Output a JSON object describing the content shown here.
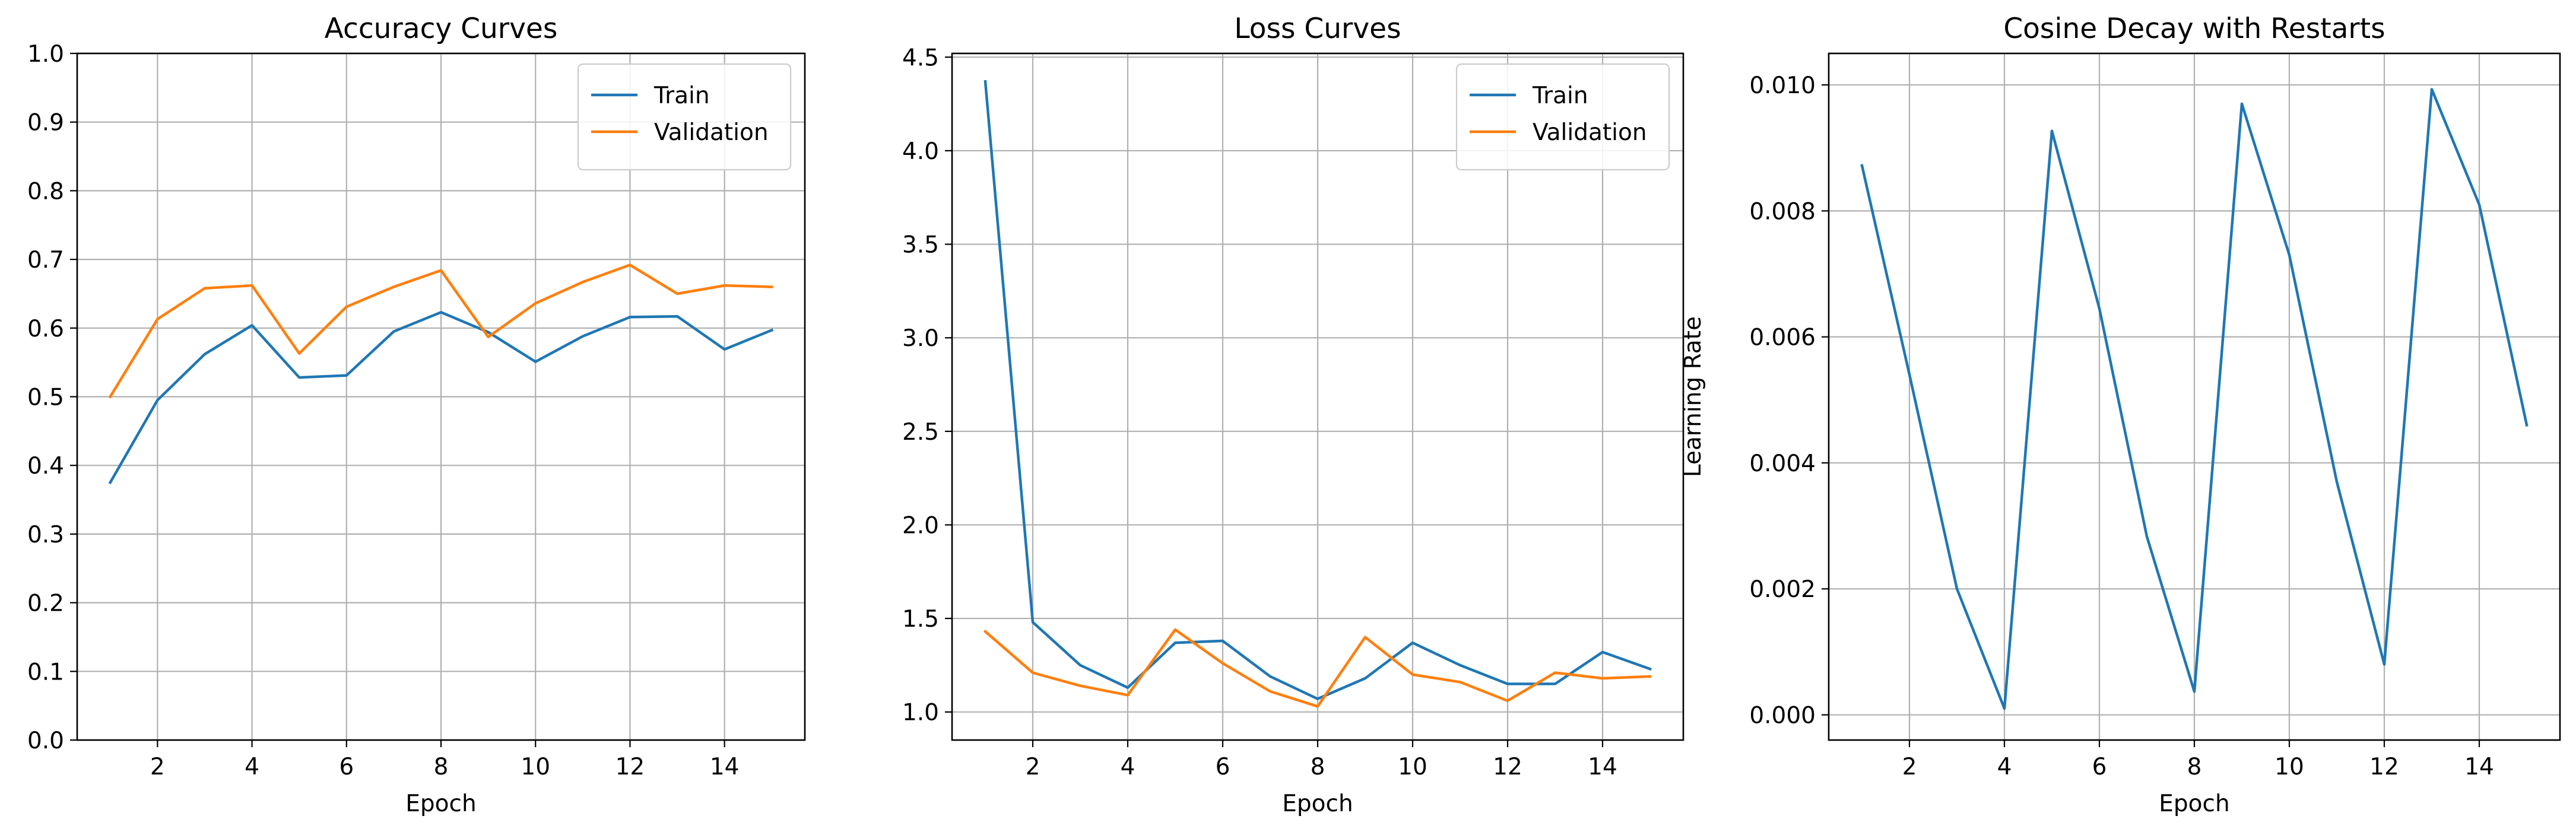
{
  "colors": {
    "train": "#1f77b4",
    "validation": "#ff7f0e",
    "grid": "#b0b0b0"
  },
  "chart_data": [
    {
      "type": "line",
      "title": "Accuracy Curves",
      "xlabel": "Epoch",
      "ylabel": "",
      "xlim": [
        0.3,
        15.7
      ],
      "ylim": [
        0.0,
        1.0
      ],
      "xticks": [
        2,
        4,
        6,
        8,
        10,
        12,
        14
      ],
      "yticks": [
        0.0,
        0.1,
        0.2,
        0.3,
        0.4,
        0.5,
        0.6,
        0.7,
        0.8,
        0.9,
        1.0
      ],
      "ytick_labels": [
        "0.0",
        "0.1",
        "0.2",
        "0.3",
        "0.4",
        "0.5",
        "0.6",
        "0.7",
        "0.8",
        "0.9",
        "1.0"
      ],
      "grid": true,
      "legend": "top-right",
      "x": [
        1,
        2,
        3,
        4,
        5,
        6,
        7,
        8,
        9,
        10,
        11,
        12,
        13,
        14,
        15
      ],
      "series": [
        {
          "name": "Train",
          "color": "#1f77b4",
          "values": [
            0.375,
            0.495,
            0.562,
            0.604,
            0.528,
            0.531,
            0.595,
            0.623,
            0.594,
            0.551,
            0.588,
            0.616,
            0.617,
            0.569,
            0.597
          ]
        },
        {
          "name": "Validation",
          "color": "#ff7f0e",
          "values": [
            0.5,
            0.613,
            0.658,
            0.662,
            0.563,
            0.631,
            0.66,
            0.684,
            0.587,
            0.636,
            0.667,
            0.692,
            0.65,
            0.662,
            0.66
          ]
        }
      ]
    },
    {
      "type": "line",
      "title": "Loss Curves",
      "xlabel": "Epoch",
      "ylabel": "",
      "xlim": [
        0.3,
        15.7
      ],
      "ylim": [
        0.85,
        4.52
      ],
      "xticks": [
        2,
        4,
        6,
        8,
        10,
        12,
        14
      ],
      "yticks": [
        1.0,
        1.5,
        2.0,
        2.5,
        3.0,
        3.5,
        4.0,
        4.5
      ],
      "ytick_labels": [
        "1.0",
        "1.5",
        "2.0",
        "2.5",
        "3.0",
        "3.5",
        "4.0",
        "4.5"
      ],
      "grid": true,
      "legend": "top-right",
      "x": [
        1,
        2,
        3,
        4,
        5,
        6,
        7,
        8,
        9,
        10,
        11,
        12,
        13,
        14,
        15
      ],
      "series": [
        {
          "name": "Train",
          "color": "#1f77b4",
          "values": [
            4.37,
            1.48,
            1.25,
            1.13,
            1.37,
            1.38,
            1.19,
            1.07,
            1.18,
            1.37,
            1.25,
            1.15,
            1.15,
            1.32,
            1.23
          ]
        },
        {
          "name": "Validation",
          "color": "#ff7f0e",
          "values": [
            1.43,
            1.21,
            1.14,
            1.09,
            1.44,
            1.26,
            1.11,
            1.03,
            1.4,
            1.2,
            1.16,
            1.06,
            1.21,
            1.18,
            1.19
          ]
        }
      ]
    },
    {
      "type": "line",
      "title": "Cosine Decay with Restarts",
      "xlabel": "Epoch",
      "ylabel": "Learning Rate",
      "xlim": [
        0.3,
        15.7
      ],
      "ylim": [
        -0.0004,
        0.0105
      ],
      "xticks": [
        2,
        4,
        6,
        8,
        10,
        12,
        14
      ],
      "yticks": [
        0.0,
        0.002,
        0.004,
        0.006,
        0.008,
        0.01
      ],
      "ytick_labels": [
        "0.000",
        "0.002",
        "0.004",
        "0.006",
        "0.008",
        "0.010"
      ],
      "grid": true,
      "legend": "none",
      "x": [
        1,
        2,
        3,
        4,
        5,
        6,
        7,
        8,
        9,
        10,
        11,
        12,
        13,
        14,
        15
      ],
      "series": [
        {
          "color": "#1f77b4",
          "values": [
            0.00872,
            0.0054,
            0.002,
            0.0001,
            0.00927,
            0.00645,
            0.00283,
            0.00037,
            0.0097,
            0.0073,
            0.0037,
            0.0008,
            0.00993,
            0.0081,
            0.0046
          ]
        }
      ]
    }
  ]
}
